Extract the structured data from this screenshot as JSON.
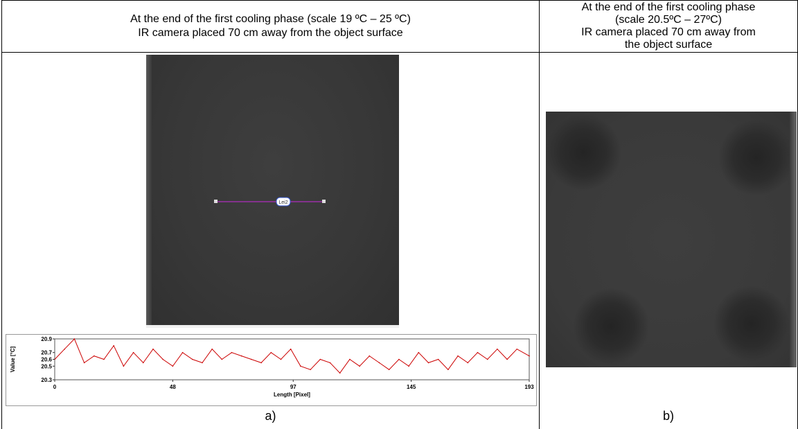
{
  "panel_a": {
    "header_line1": "At the end of the first cooling phase (scale 19 ºC – 25 ºC)",
    "header_line2": "IR camera placed 70 cm away from the object surface",
    "line_label": "Lei2",
    "caption": "a)"
  },
  "panel_b": {
    "header_lines": [
      "At the end of the first cooling phase",
      "(scale 20.5ºC – 27ºC)",
      "IR camera placed 70 cm away from",
      "the object surface"
    ],
    "caption": "b)"
  },
  "chart_data": {
    "type": "line",
    "xlabel": "Length [Pixel]",
    "ylabel": "Value [°C]",
    "x_ticks": [
      "0",
      "48",
      "97",
      "145",
      "193"
    ],
    "y_ticks": [
      "20.3",
      "20.5",
      "20.6",
      "20.7",
      "20.9"
    ],
    "xlim": [
      0,
      193
    ],
    "ylim": [
      20.3,
      20.9
    ],
    "series_color": "#cc0000",
    "x": [
      0,
      4,
      8,
      12,
      16,
      20,
      24,
      28,
      32,
      36,
      40,
      44,
      48,
      52,
      56,
      60,
      64,
      68,
      72,
      76,
      80,
      84,
      88,
      92,
      96,
      100,
      104,
      108,
      112,
      116,
      120,
      124,
      128,
      132,
      136,
      140,
      144,
      148,
      152,
      156,
      160,
      164,
      168,
      172,
      176,
      180,
      184,
      188,
      193
    ],
    "values": [
      20.6,
      20.75,
      20.9,
      20.55,
      20.65,
      20.6,
      20.8,
      20.5,
      20.7,
      20.55,
      20.75,
      20.6,
      20.5,
      20.7,
      20.6,
      20.55,
      20.75,
      20.6,
      20.7,
      20.65,
      20.6,
      20.55,
      20.7,
      20.6,
      20.75,
      20.5,
      20.45,
      20.6,
      20.55,
      20.4,
      20.6,
      20.5,
      20.65,
      20.55,
      20.45,
      20.6,
      20.5,
      20.7,
      20.55,
      20.6,
      20.45,
      20.65,
      20.55,
      20.7,
      20.6,
      20.75,
      20.6,
      20.75,
      20.65
    ]
  }
}
